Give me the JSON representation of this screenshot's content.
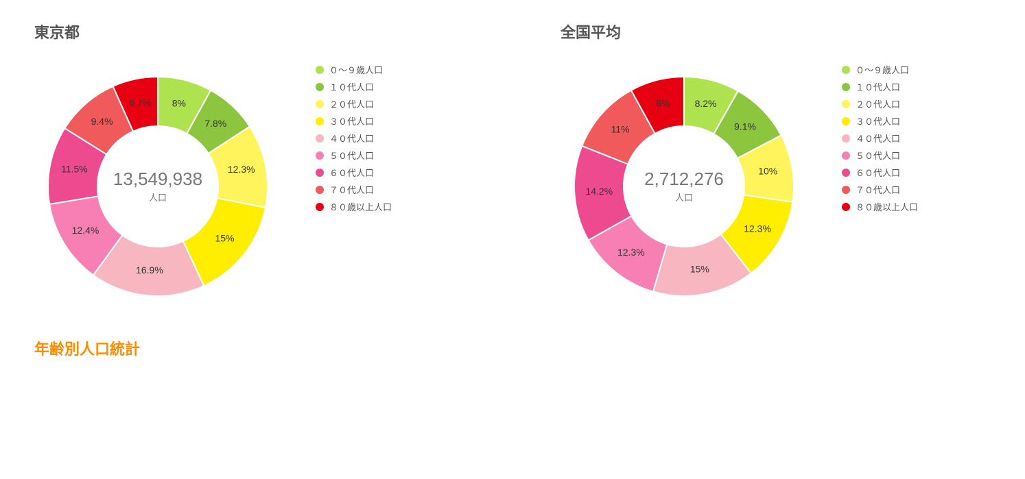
{
  "legend_labels": [
    "０～９歳人口",
    "１０代人口",
    "２０代人口",
    "３０代人口",
    "４０代人口",
    "５０代人口",
    "６０代人口",
    "７０代人口",
    "８０歳以上人口"
  ],
  "colors": [
    "#aee34f",
    "#8cc63f",
    "#fff45c",
    "#ffee00",
    "#f8b6c0",
    "#f77fb3",
    "#ed4a8f",
    "#f05a5a",
    "#e60012"
  ],
  "donut": {
    "outer_radius": 160,
    "inner_radius": 88,
    "label_radius": 124,
    "stroke": "#ffffff",
    "stroke_width": 2,
    "label_color": "#333333",
    "label_fontsize": 14,
    "center_value_color": "#777777",
    "center_value_fontsize": 26,
    "center_sub_fontsize": 13
  },
  "charts": [
    {
      "title": "東京都",
      "center_value": "13,549,938",
      "center_sub": "人口",
      "slices": [
        {
          "pct": 8.0,
          "label": "8%"
        },
        {
          "pct": 7.8,
          "label": "7.8%"
        },
        {
          "pct": 12.3,
          "label": "12.3%"
        },
        {
          "pct": 15.0,
          "label": "15%"
        },
        {
          "pct": 16.9,
          "label": "16.9%"
        },
        {
          "pct": 12.4,
          "label": "12.4%"
        },
        {
          "pct": 11.5,
          "label": "11.5%"
        },
        {
          "pct": 9.4,
          "label": "9.4%"
        },
        {
          "pct": 6.7,
          "label": "6.7%"
        }
      ]
    },
    {
      "title": "全国平均",
      "center_value": "2,712,276",
      "center_sub": "人口",
      "slices": [
        {
          "pct": 8.2,
          "label": "8.2%"
        },
        {
          "pct": 9.1,
          "label": "9.1%"
        },
        {
          "pct": 10.0,
          "label": "10%"
        },
        {
          "pct": 12.3,
          "label": "12.3%"
        },
        {
          "pct": 15.0,
          "label": "15%"
        },
        {
          "pct": 12.3,
          "label": "12.3%"
        },
        {
          "pct": 14.2,
          "label": "14.2%"
        },
        {
          "pct": 11.0,
          "label": "11%"
        },
        {
          "pct": 8.0,
          "label": "8%"
        }
      ]
    }
  ],
  "footer_title": "年齢別人口統計"
}
